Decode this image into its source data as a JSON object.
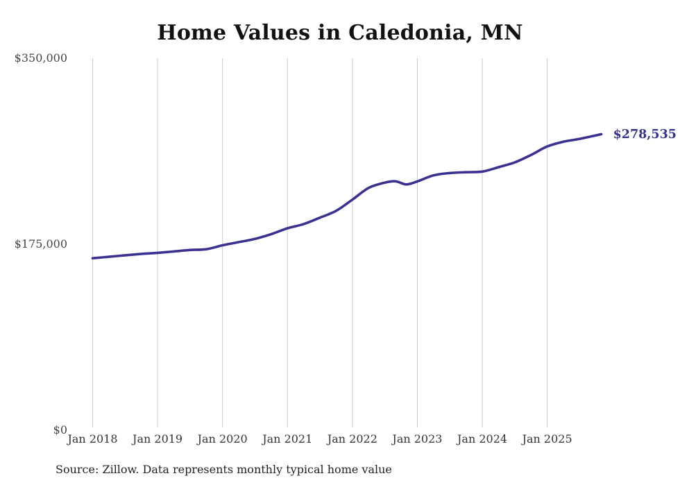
{
  "chart_data": {
    "type": "line",
    "title": "Home Values in Caledonia, MN",
    "source_note": "Source: Zillow. Data represents monthly typical home value",
    "end_label": "$278,535",
    "end_value": 278535,
    "line_color": "#3a3191",
    "end_label_color": "#33308f",
    "gridline_color": "#c9c9c9",
    "grid": "vertical-only",
    "legend": "none",
    "y_axis": {
      "min": 0,
      "max": 350000,
      "ticks": [
        {
          "label": "$350,000",
          "value": 350000
        },
        {
          "label": "$175,000",
          "value": 175000
        },
        {
          "label": "$0",
          "value": 0
        }
      ]
    },
    "x_axis": {
      "ticks": [
        {
          "label": "Jan 2018",
          "month": "2018-01"
        },
        {
          "label": "Jan 2019",
          "month": "2019-01"
        },
        {
          "label": "Jan 2020",
          "month": "2020-01"
        },
        {
          "label": "Jan 2021",
          "month": "2021-01"
        },
        {
          "label": "Jan 2022",
          "month": "2022-01"
        },
        {
          "label": "Jan 2023",
          "month": "2023-01"
        },
        {
          "label": "Jan 2024",
          "month": "2024-01"
        },
        {
          "label": "Jan 2025",
          "month": "2025-01"
        }
      ]
    },
    "series": [
      {
        "name": "Typical home value",
        "points": [
          {
            "month": "2018-01",
            "value": 161800
          },
          {
            "month": "2018-04",
            "value": 163200
          },
          {
            "month": "2018-07",
            "value": 164600
          },
          {
            "month": "2018-10",
            "value": 165900
          },
          {
            "month": "2019-01",
            "value": 166900
          },
          {
            "month": "2019-04",
            "value": 168200
          },
          {
            "month": "2019-07",
            "value": 169600
          },
          {
            "month": "2019-10",
            "value": 170300
          },
          {
            "month": "2020-01",
            "value": 174000
          },
          {
            "month": "2020-04",
            "value": 177000
          },
          {
            "month": "2020-07",
            "value": 180000
          },
          {
            "month": "2020-10",
            "value": 184500
          },
          {
            "month": "2021-01",
            "value": 190000
          },
          {
            "month": "2021-04",
            "value": 194000
          },
          {
            "month": "2021-07",
            "value": 200000
          },
          {
            "month": "2021-10",
            "value": 206500
          },
          {
            "month": "2022-01",
            "value": 217000
          },
          {
            "month": "2022-04",
            "value": 228000
          },
          {
            "month": "2022-07",
            "value": 233000
          },
          {
            "month": "2022-09",
            "value": 234200
          },
          {
            "month": "2022-11",
            "value": 231300
          },
          {
            "month": "2023-01",
            "value": 234100
          },
          {
            "month": "2023-04",
            "value": 239800
          },
          {
            "month": "2023-07",
            "value": 242000
          },
          {
            "month": "2023-10",
            "value": 242800
          },
          {
            "month": "2024-01",
            "value": 243400
          },
          {
            "month": "2024-04",
            "value": 247500
          },
          {
            "month": "2024-07",
            "value": 252000
          },
          {
            "month": "2024-10",
            "value": 259000
          },
          {
            "month": "2025-01",
            "value": 267000
          },
          {
            "month": "2025-04",
            "value": 271500
          },
          {
            "month": "2025-07",
            "value": 274200
          },
          {
            "month": "2025-11",
            "value": 278535
          }
        ]
      }
    ]
  }
}
